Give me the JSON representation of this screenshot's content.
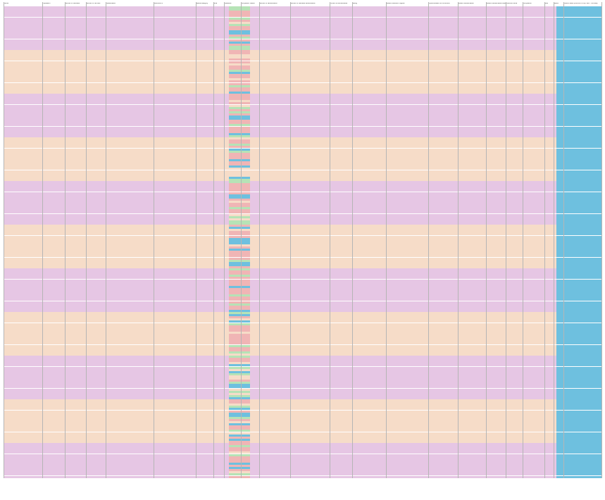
{
  "sheet": {
    "columns": [
      "District",
      "Population",
      "Number of Facilities",
      "Number of Schools",
      "Classification",
      "Reference #",
      "Status/Category",
      "Area",
      "Classified",
      "Completion Status",
      "Number of Beneficiaries",
      "Number of Facilities Beneficiaries",
      "Percent of Beneficiaries",
      "Rating",
      "Student Results Program",
      "Implementation & Curriculum",
      "Student Beneficiaries",
      "Student Beneficiaries Rating",
      "Extension Area",
      "Compliance",
      "Note",
      "Status",
      "Lowest Value (Percent of Pop. with - SCORE)"
    ],
    "palette": {
      "pink": "#e6c6e4",
      "peach": "#f6dcc8",
      "green": "#b6e3b6",
      "blue": "#6ec0df",
      "red": "#f0b5b5",
      "grid": "#b5b5b5"
    },
    "row_count": 216
  }
}
